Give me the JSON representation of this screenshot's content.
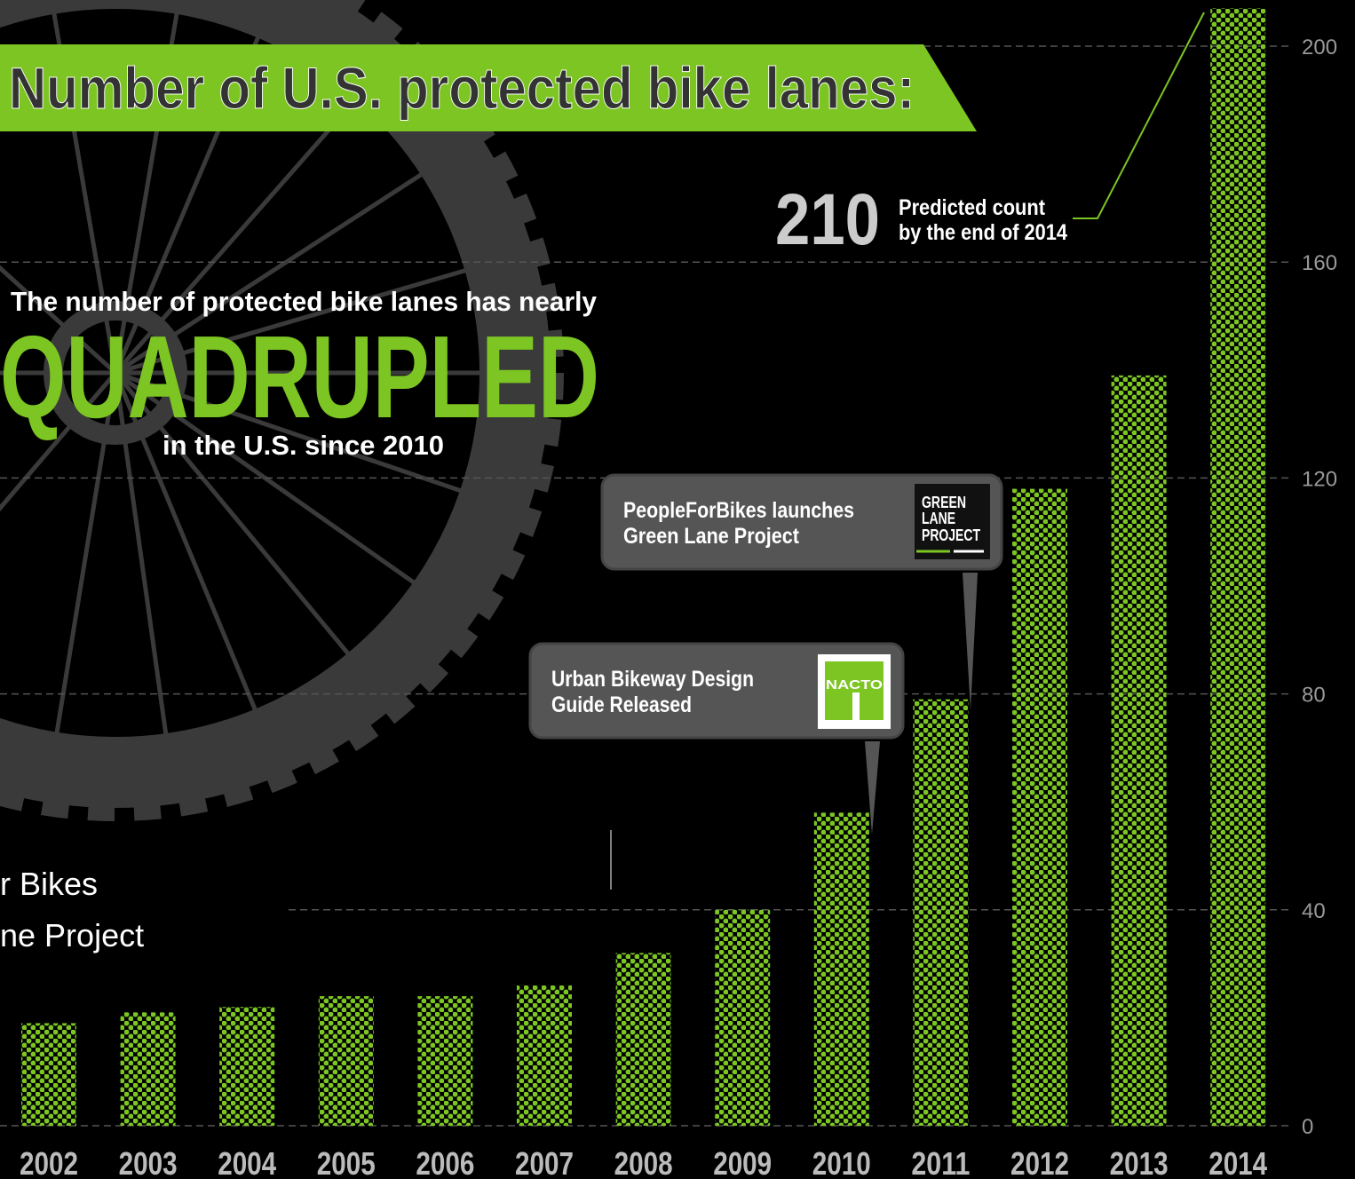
{
  "chart_data": {
    "type": "bar",
    "title": "Number of U.S. protected bike lanes:",
    "categories": [
      "2002",
      "2003",
      "2004",
      "2005",
      "2006",
      "2007",
      "2008",
      "2009",
      "2010",
      "2011",
      "2012",
      "2013",
      "2014"
    ],
    "values": [
      19,
      21,
      22,
      24,
      24,
      26,
      32,
      40,
      58,
      79,
      118,
      139,
      207
    ],
    "color": "#7cc522",
    "ylim": [
      0,
      200
    ],
    "yticks": [
      0,
      40,
      80,
      120,
      160,
      200
    ],
    "grid": true,
    "headline": {
      "intro": "The number of protected bike lanes has nearly",
      "big": "QUADRUPLED",
      "outro": "in the U.S. since 2010"
    },
    "prediction": {
      "number": "210",
      "lines": [
        "Predicted count",
        "by the end of 2014"
      ]
    },
    "callouts": [
      {
        "lines": [
          "PeopleForBikes launches",
          "Green Lane Project"
        ],
        "logo": [
          "GREEN",
          "LANE",
          "PROJECT"
        ]
      },
      {
        "lines": [
          "Urban Bikeway Design",
          "Guide Released"
        ],
        "logo": [
          "NACTO"
        ]
      }
    ],
    "overlay_text": [
      "r Bikes",
      "ne Project"
    ]
  }
}
